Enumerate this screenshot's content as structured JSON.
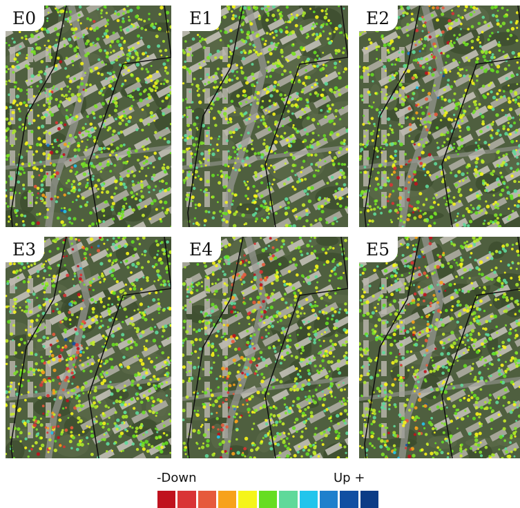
{
  "panels": [
    {
      "label": "E0",
      "hotspots": "low"
    },
    {
      "label": "E1",
      "hotspots": "minimal"
    },
    {
      "label": "E2",
      "hotspots": "moderate"
    },
    {
      "label": "E3",
      "hotspots": "high"
    },
    {
      "label": "E4",
      "hotspots": "high"
    },
    {
      "label": "E5",
      "hotspots": "moderate"
    }
  ],
  "legend": {
    "left_label": "-Down",
    "right_label": "Up +",
    "colors": [
      "#c0121e",
      "#d93435",
      "#e65a3c",
      "#f7a21b",
      "#f5f51a",
      "#66dd22",
      "#5fd99a",
      "#22c5ec",
      "#1f80cc",
      "#114fa2",
      "#0c3c86"
    ]
  },
  "colors": {
    "aerial_base": "#4a5a3c",
    "boundary_line": "#111111"
  }
}
